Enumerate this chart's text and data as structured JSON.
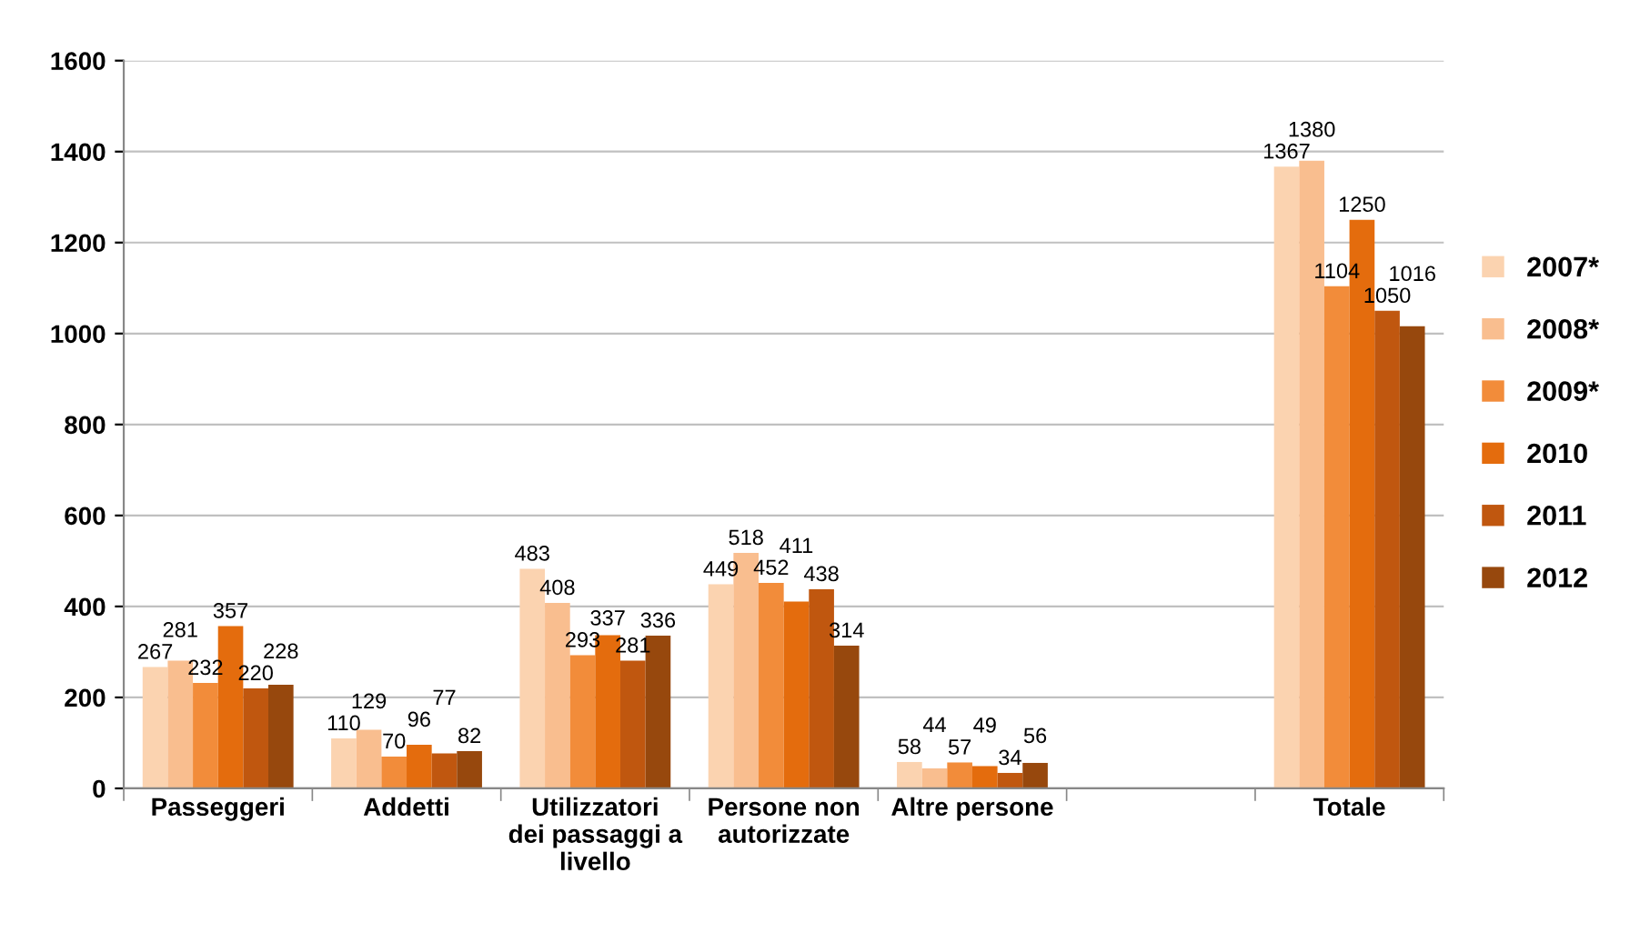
{
  "chart_data": {
    "type": "bar",
    "categories": [
      "Passeggeri",
      "Addetti",
      "Utilizzatori\ndei passaggi a\nlivello",
      "Persone non\nautorizzate",
      "Altre persone",
      null,
      "Totale"
    ],
    "series": [
      {
        "name": "2007*",
        "color": "#fbd3b0",
        "values": [
          267,
          110,
          483,
          449,
          58,
          null,
          1367
        ]
      },
      {
        "name": "2008*",
        "color": "#f9be8f",
        "values": [
          281,
          129,
          408,
          518,
          44,
          null,
          1380
        ]
      },
      {
        "name": "2009*",
        "color": "#f28c3a",
        "values": [
          232,
          70,
          293,
          452,
          57,
          null,
          1104
        ]
      },
      {
        "name": "2010",
        "color": "#e46c0d",
        "values": [
          357,
          96,
          337,
          411,
          49,
          null,
          1250
        ]
      },
      {
        "name": "2011",
        "color": "#c0570f",
        "values": [
          220,
          77,
          281,
          438,
          34,
          null,
          1050
        ]
      },
      {
        "name": "2012",
        "color": "#97480d",
        "values": [
          228,
          82,
          336,
          314,
          56,
          null,
          1016
        ]
      }
    ],
    "ylim": [
      0,
      1600
    ],
    "yticks": [
      0,
      200,
      400,
      600,
      800,
      1000,
      1200,
      1400,
      1600
    ],
    "grid": "y",
    "legend": "right",
    "data_labels": true
  }
}
